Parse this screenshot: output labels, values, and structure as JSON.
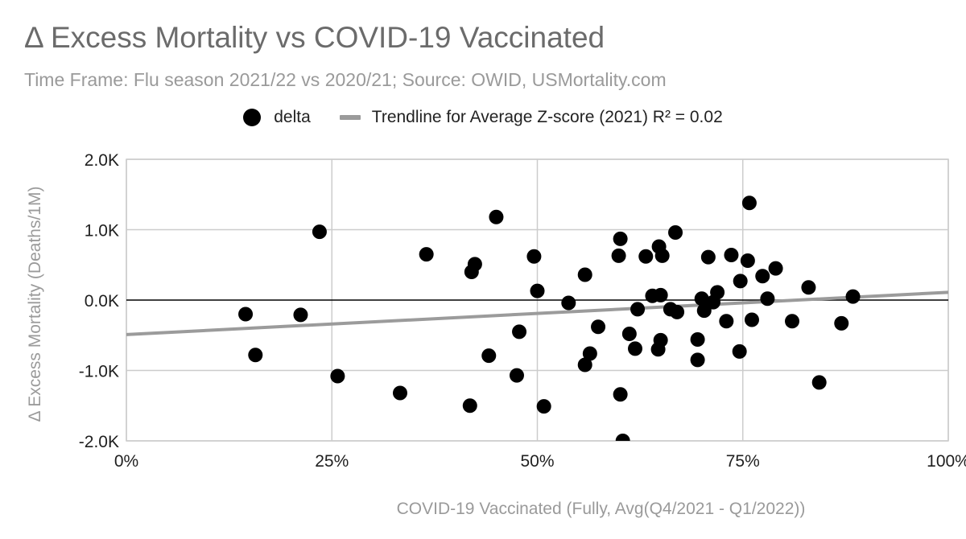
{
  "chart_data": {
    "type": "scatter",
    "title": "Δ Excess Mortality vs COVID-19 Vaccinated",
    "subtitle": "Time Frame: Flu season 2021/22 vs 2020/21; Source: OWID, USMortality.com",
    "xlabel": "COVID-19 Vaccinated (Fully, Avg(Q4/2021 - Q1/2022))",
    "ylabel": "Δ Excess Mortality (Deaths/1M)",
    "xlim": [
      0,
      1
    ],
    "ylim": [
      -2000,
      2000
    ],
    "x_ticks": [
      {
        "value": 0,
        "label": "0%"
      },
      {
        "value": 0.25,
        "label": "25%"
      },
      {
        "value": 0.5,
        "label": "50%"
      },
      {
        "value": 0.75,
        "label": "75%"
      },
      {
        "value": 1,
        "label": "100%"
      }
    ],
    "y_ticks": [
      {
        "value": 2000,
        "label": "2.0K"
      },
      {
        "value": 1000,
        "label": "1.0K"
      },
      {
        "value": 0,
        "label": "0.0K"
      },
      {
        "value": -1000,
        "label": "-1.0K"
      },
      {
        "value": -2000,
        "label": "-2.0K"
      }
    ],
    "legend": {
      "position": "top",
      "series_label": "delta",
      "trend_label": "Trendline for Average Z-score (2021) R² = 0.02"
    },
    "series": [
      {
        "name": "delta",
        "points": [
          [
            0.145,
            -200
          ],
          [
            0.157,
            -780
          ],
          [
            0.212,
            -210
          ],
          [
            0.235,
            970
          ],
          [
            0.257,
            -1080
          ],
          [
            0.333,
            -1320
          ],
          [
            0.365,
            650
          ],
          [
            0.418,
            -1500
          ],
          [
            0.42,
            400
          ],
          [
            0.424,
            510
          ],
          [
            0.441,
            -790
          ],
          [
            0.45,
            1180
          ],
          [
            0.475,
            -1070
          ],
          [
            0.478,
            -450
          ],
          [
            0.496,
            620
          ],
          [
            0.5,
            130
          ],
          [
            0.508,
            -1510
          ],
          [
            0.538,
            -40
          ],
          [
            0.558,
            360
          ],
          [
            0.558,
            -920
          ],
          [
            0.564,
            -760
          ],
          [
            0.574,
            -380
          ],
          [
            0.599,
            630
          ],
          [
            0.601,
            870
          ],
          [
            0.601,
            -1340
          ],
          [
            0.604,
            -2000
          ],
          [
            0.612,
            -480
          ],
          [
            0.619,
            -690
          ],
          [
            0.622,
            -130
          ],
          [
            0.632,
            620
          ],
          [
            0.64,
            60
          ],
          [
            0.647,
            -700
          ],
          [
            0.648,
            760
          ],
          [
            0.65,
            70
          ],
          [
            0.65,
            -570
          ],
          [
            0.652,
            630
          ],
          [
            0.662,
            -130
          ],
          [
            0.668,
            960
          ],
          [
            0.67,
            -170
          ],
          [
            0.695,
            -560
          ],
          [
            0.695,
            -850
          ],
          [
            0.7,
            20
          ],
          [
            0.703,
            -150
          ],
          [
            0.708,
            610
          ],
          [
            0.714,
            -30
          ],
          [
            0.719,
            110
          ],
          [
            0.73,
            -300
          ],
          [
            0.736,
            640
          ],
          [
            0.746,
            -730
          ],
          [
            0.747,
            270
          ],
          [
            0.756,
            560
          ],
          [
            0.758,
            1380
          ],
          [
            0.761,
            -280
          ],
          [
            0.774,
            340
          ],
          [
            0.78,
            20
          ],
          [
            0.79,
            450
          ],
          [
            0.81,
            -300
          ],
          [
            0.83,
            180
          ],
          [
            0.843,
            -1170
          ],
          [
            0.87,
            -330
          ],
          [
            0.884,
            50
          ]
        ]
      }
    ],
    "trendline": {
      "from": [
        0,
        -490
      ],
      "to": [
        1,
        110
      ]
    },
    "colors": {
      "points": "#000000",
      "trendline": "#9b9b9b",
      "grid": "#cccccc",
      "zero_line": "#000000"
    }
  }
}
